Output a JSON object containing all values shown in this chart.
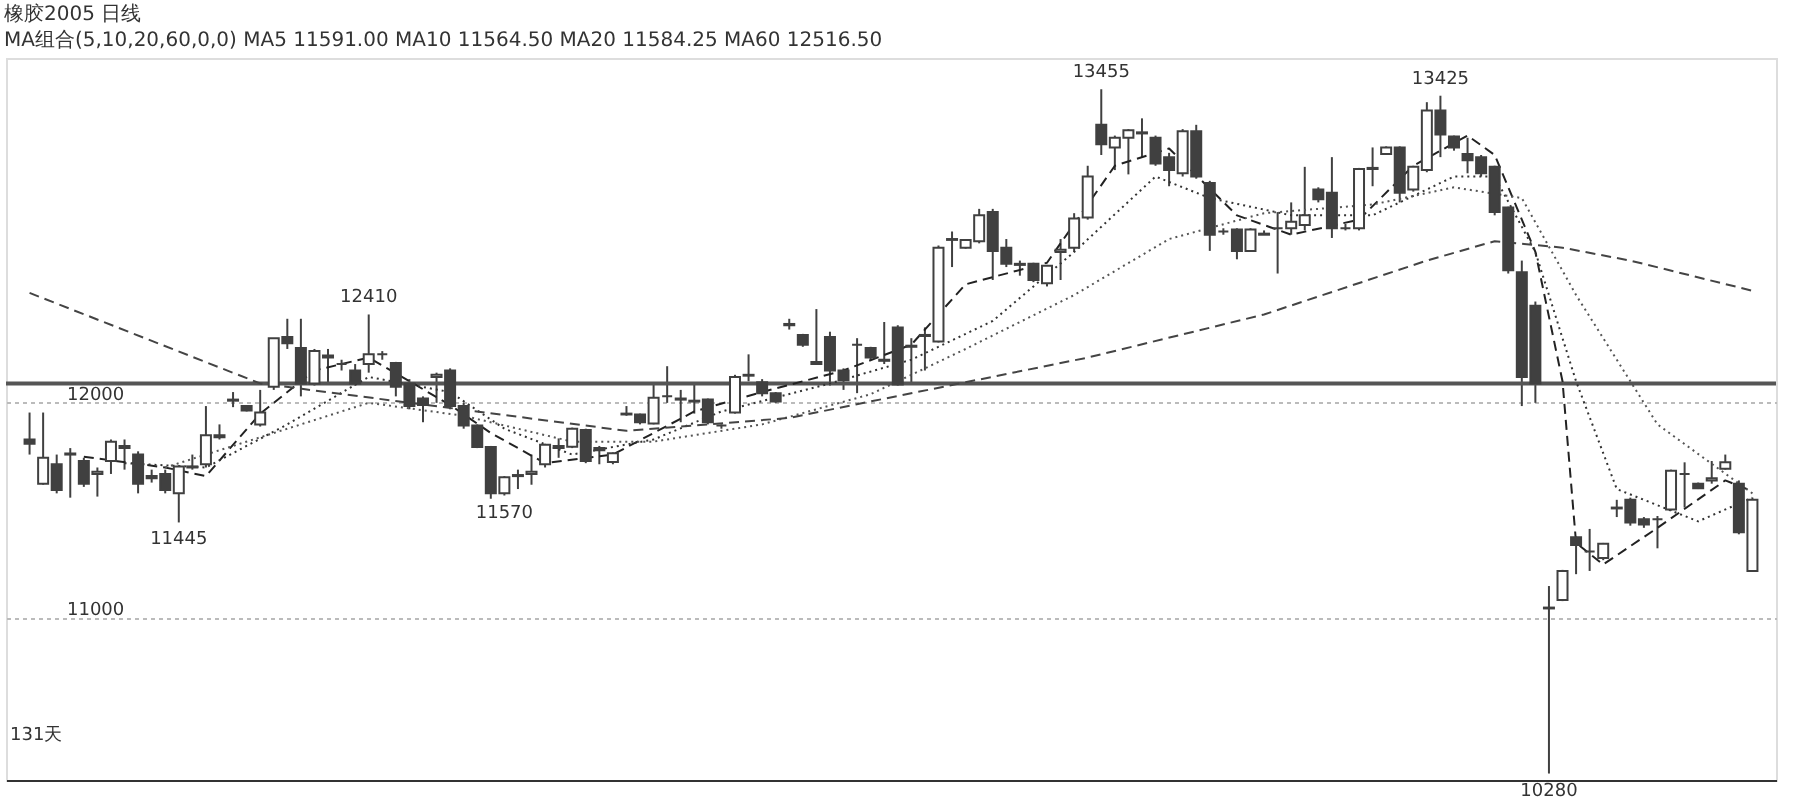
{
  "chart_data": {
    "type": "candlestick",
    "title": "橡胶2005 日线",
    "subtitle": "MA组合(5,10,20,60,0,0)  MA5 11591.00  MA10 11564.50  MA20 11584.25  MA60 12516.50",
    "color": "#404040",
    "categories": [
      null,
      null,
      null,
      null,
      null,
      null,
      null,
      null,
      null,
      null,
      null,
      null,
      null,
      null,
      null,
      null,
      null,
      null,
      null,
      null,
      null,
      null,
      null,
      null,
      null,
      null,
      null,
      null,
      null,
      null,
      null,
      null,
      null,
      null,
      null,
      null,
      null,
      null,
      null,
      null,
      null,
      null,
      null,
      null,
      null,
      null,
      null,
      null,
      null,
      null,
      null,
      null,
      null,
      null,
      null,
      null,
      null,
      null,
      null,
      null,
      null,
      null,
      null,
      null,
      null,
      null,
      null,
      null,
      null,
      null,
      null,
      null,
      null,
      null,
      null,
      null,
      null,
      null,
      null,
      null,
      null,
      null,
      null,
      null,
      null,
      null,
      null,
      null,
      null,
      null,
      null,
      null,
      null,
      null,
      null,
      null,
      null,
      null,
      null,
      null,
      null,
      null,
      null,
      null,
      null,
      null,
      null,
      null,
      null,
      null,
      null,
      null,
      null,
      null,
      null,
      null,
      null,
      null,
      null,
      null,
      null,
      null,
      null,
      null,
      null,
      null,
      null,
      null
    ],
    "ohlc": [
      [
        11830,
        11955,
        11760,
        11810
      ],
      [
        11625,
        11955,
        11620,
        11745
      ],
      [
        11715,
        11760,
        11580,
        11595
      ],
      [
        11760,
        11790,
        11560,
        11765
      ],
      [
        11730,
        11745,
        11610,
        11625
      ],
      [
        11670,
        11700,
        11565,
        11680
      ],
      [
        11730,
        11830,
        11670,
        11820
      ],
      [
        11800,
        11830,
        11690,
        11790
      ],
      [
        11760,
        11775,
        11580,
        11625
      ],
      [
        11660,
        11690,
        11630,
        11650
      ],
      [
        11670,
        11690,
        11580,
        11595
      ],
      [
        11580,
        11710,
        11445,
        11705
      ],
      [
        11700,
        11760,
        11690,
        11705
      ],
      [
        11715,
        11985,
        11700,
        11850
      ],
      [
        11840,
        11900,
        11830,
        11850
      ],
      [
        12010,
        12050,
        11980,
        12015
      ],
      [
        11985,
        11990,
        11960,
        11965
      ],
      [
        11900,
        12060,
        11890,
        11955
      ],
      [
        12075,
        12300,
        12060,
        12300
      ],
      [
        12306,
        12390,
        12250,
        12276
      ],
      [
        12255,
        12390,
        12030,
        12090
      ],
      [
        12090,
        12250,
        12080,
        12240
      ],
      [
        12210,
        12250,
        12090,
        12220
      ],
      [
        12180,
        12200,
        12150,
        12180
      ],
      [
        12150,
        12180,
        12080,
        12090
      ],
      [
        12180,
        12410,
        12140,
        12225
      ],
      [
        12225,
        12240,
        12200,
        12225
      ],
      [
        12185,
        12190,
        12030,
        12075
      ],
      [
        12090,
        12110,
        11970,
        11985
      ],
      [
        12020,
        12030,
        11910,
        11990
      ],
      [
        12120,
        12140,
        12000,
        12130
      ],
      [
        12150,
        12160,
        11970,
        11985
      ],
      [
        11985,
        12000,
        11880,
        11895
      ],
      [
        11895,
        11900,
        11790,
        11795
      ],
      [
        11795,
        11800,
        11555,
        11580
      ],
      [
        11580,
        11660,
        11570,
        11655
      ],
      [
        11660,
        11690,
        11600,
        11665
      ],
      [
        11670,
        11760,
        11620,
        11680
      ],
      [
        11715,
        11810,
        11700,
        11805
      ],
      [
        11790,
        11835,
        11745,
        11800
      ],
      [
        11796,
        11885,
        11790,
        11880
      ],
      [
        11874,
        11880,
        11720,
        11730
      ],
      [
        11790,
        11800,
        11715,
        11780
      ],
      [
        11725,
        11770,
        11715,
        11766
      ],
      [
        11946,
        11985,
        11940,
        11950
      ],
      [
        11946,
        11950,
        11900,
        11910
      ],
      [
        11904,
        12090,
        11900,
        12024
      ],
      [
        12030,
        12170,
        12000,
        12030
      ],
      [
        12015,
        12060,
        11910,
        12020
      ],
      [
        12006,
        12090,
        11950,
        12010
      ],
      [
        12015,
        12020,
        11900,
        11910
      ],
      [
        11895,
        11900,
        11880,
        11895
      ],
      [
        11955,
        12130,
        11950,
        12120
      ],
      [
        12126,
        12225,
        12100,
        12130
      ],
      [
        12096,
        12110,
        12030,
        12045
      ],
      [
        12045,
        12050,
        12000,
        12006
      ],
      [
        12360,
        12390,
        12340,
        12366
      ],
      [
        12315,
        12320,
        12260,
        12270
      ],
      [
        12180,
        12435,
        12180,
        12190
      ],
      [
        12306,
        12330,
        12080,
        12150
      ],
      [
        12150,
        12160,
        12060,
        12105
      ],
      [
        12270,
        12300,
        12045,
        12270
      ],
      [
        12255,
        12260,
        12200,
        12210
      ],
      [
        12195,
        12375,
        12180,
        12200
      ],
      [
        12350,
        12360,
        12080,
        12085
      ],
      [
        12260,
        12300,
        12085,
        12265
      ],
      [
        12310,
        12350,
        12150,
        12315
      ],
      [
        12285,
        12730,
        12280,
        12720
      ],
      [
        12756,
        12795,
        12630,
        12760
      ],
      [
        12720,
        12760,
        12715,
        12756
      ],
      [
        12750,
        12900,
        12740,
        12870
      ],
      [
        12885,
        12900,
        12570,
        12705
      ],
      [
        12720,
        12760,
        12630,
        12645
      ],
      [
        12640,
        12660,
        12590,
        12645
      ],
      [
        12645,
        12650,
        12560,
        12570
      ],
      [
        12555,
        12640,
        12540,
        12636
      ],
      [
        12700,
        12760,
        12570,
        12710
      ],
      [
        12720,
        12880,
        12700,
        12855
      ],
      [
        12860,
        13100,
        12850,
        13050
      ],
      [
        13290,
        13455,
        13150,
        13200
      ],
      [
        13185,
        13240,
        13080,
        13230
      ],
      [
        13230,
        13270,
        13060,
        13265
      ],
      [
        13255,
        13320,
        13140,
        13250
      ],
      [
        13230,
        13240,
        13100,
        13110
      ],
      [
        13140,
        13160,
        13005,
        13080
      ],
      [
        13065,
        13270,
        13050,
        13260
      ],
      [
        13260,
        13290,
        13040,
        13050
      ],
      [
        13020,
        13030,
        12705,
        12780
      ],
      [
        12795,
        12810,
        12780,
        12795
      ],
      [
        12804,
        12810,
        12666,
        12705
      ],
      [
        12705,
        12810,
        12700,
        12804
      ],
      [
        12780,
        12800,
        12780,
        12785
      ],
      [
        12810,
        12885,
        12600,
        12810
      ],
      [
        12810,
        12930,
        12780,
        12840
      ],
      [
        12825,
        13095,
        12800,
        12870
      ],
      [
        12990,
        13000,
        12930,
        12945
      ],
      [
        12975,
        13140,
        12765,
        12810
      ],
      [
        12810,
        12830,
        12800,
        12810
      ],
      [
        12810,
        13090,
        12800,
        13085
      ],
      [
        13085,
        13185,
        13005,
        13090
      ],
      [
        13155,
        13190,
        13150,
        13185
      ],
      [
        13185,
        13190,
        12930,
        12975
      ],
      [
        12990,
        13100,
        12980,
        13095
      ],
      [
        13080,
        13395,
        13070,
        13356
      ],
      [
        13356,
        13425,
        13140,
        13245
      ],
      [
        13236,
        13240,
        13170,
        13185
      ],
      [
        13155,
        13230,
        13065,
        13125
      ],
      [
        13140,
        13150,
        13050,
        13065
      ],
      [
        13095,
        13100,
        12870,
        12885
      ],
      [
        12906,
        12910,
        12600,
        12615
      ],
      [
        12606,
        12660,
        11985,
        12120
      ],
      [
        12450,
        12470,
        12000,
        12090
      ],
      [
        11046,
        11150,
        10280,
        11050
      ],
      [
        11085,
        11225,
        11080,
        11220
      ],
      [
        11376,
        11380,
        11205,
        11340
      ],
      [
        11310,
        11415,
        11220,
        11310
      ],
      [
        11280,
        11350,
        11270,
        11346
      ],
      [
        11510,
        11550,
        11470,
        11514
      ],
      [
        11550,
        11560,
        11430,
        11445
      ],
      [
        11460,
        11470,
        11420,
        11436
      ],
      [
        11460,
        11475,
        11325,
        11460
      ],
      [
        11505,
        11690,
        11500,
        11685
      ],
      [
        11670,
        11724,
        11514,
        11670
      ],
      [
        11625,
        11630,
        11600,
        11604
      ],
      [
        11640,
        11730,
        11625,
        11650
      ],
      [
        11694,
        11760,
        11690,
        11724
      ],
      [
        11625,
        11640,
        11390,
        11400
      ],
      [
        11220,
        11560,
        11220,
        11550
      ]
    ],
    "series": [
      {
        "type": "line",
        "color": "#222222",
        "line_style": "dashed",
        "values": [
          null,
          null,
          null,
          null,
          11750,
          null,
          null,
          null,
          null,
          null,
          11700,
          null,
          null,
          11660,
          null,
          null,
          null,
          11950,
          null,
          null,
          null,
          12150,
          null,
          null,
          null,
          12210,
          null,
          null,
          null,
          null,
          null,
          11990,
          null,
          null,
          11860,
          null,
          null,
          null,
          11720,
          null,
          null,
          null,
          null,
          11760,
          null,
          null,
          null,
          null,
          null,
          11960,
          null,
          null,
          null,
          null,
          12050,
          null,
          null,
          null,
          null,
          null,
          12150,
          null,
          null,
          null,
          null,
          12270,
          null,
          null,
          null,
          12550,
          null,
          null,
          null,
          null,
          null,
          12650,
          null,
          null,
          null,
          null,
          13100,
          null,
          null,
          null,
          13180,
          null,
          null,
          null,
          null,
          12870,
          null,
          null,
          null,
          12780,
          null,
          null,
          null,
          null,
          12850,
          null,
          null,
          null,
          13100,
          null,
          null,
          null,
          13240,
          null,
          13150,
          null,
          null,
          12700,
          null,
          12100,
          11350,
          null,
          11250,
          null,
          null,
          null,
          11420,
          null,
          null,
          null,
          null,
          11640,
          null,
          11590
        ]
      },
      {
        "type": "line",
        "color": "#333333",
        "line_style": "dotted",
        "values": [
          null,
          null,
          null,
          null,
          null,
          null,
          null,
          11720,
          null,
          null,
          null,
          null,
          null,
          11700,
          null,
          null,
          null,
          null,
          null,
          11900,
          null,
          null,
          null,
          null,
          null,
          12120,
          null,
          null,
          null,
          null,
          null,
          12050,
          null,
          null,
          null,
          11880,
          null,
          null,
          null,
          null,
          11760,
          null,
          null,
          null,
          null,
          null,
          11830,
          null,
          null,
          null,
          null,
          11960,
          null,
          null,
          null,
          null,
          null,
          null,
          null,
          12090,
          null,
          null,
          null,
          null,
          null,
          12200,
          null,
          null,
          null,
          null,
          null,
          12380,
          null,
          null,
          null,
          null,
          null,
          12700,
          null,
          null,
          null,
          null,
          null,
          13050,
          null,
          null,
          null,
          12950,
          null,
          null,
          null,
          null,
          null,
          12870,
          null,
          null,
          null,
          null,
          null,
          12870,
          null,
          null,
          null,
          null,
          null,
          13050,
          null,
          null,
          13050,
          null,
          null,
          12700,
          null,
          null,
          12100,
          null,
          null,
          11600,
          null,
          null,
          null,
          null,
          null,
          11450,
          null,
          null,
          null,
          11560
        ]
      },
      {
        "type": "line",
        "color": "#555555",
        "line_style": "dotted",
        "values": [
          null,
          null,
          null,
          null,
          null,
          null,
          null,
          null,
          null,
          null,
          11700,
          null,
          null,
          null,
          null,
          null,
          null,
          11840,
          null,
          null,
          null,
          null,
          null,
          null,
          null,
          12000,
          null,
          null,
          null,
          null,
          null,
          null,
          11940,
          null,
          null,
          null,
          null,
          null,
          null,
          null,
          11820,
          null,
          null,
          null,
          null,
          null,
          11820,
          null,
          null,
          null,
          null,
          null,
          null,
          null,
          11900,
          null,
          null,
          null,
          null,
          null,
          null,
          null,
          12040,
          null,
          null,
          null,
          null,
          null,
          null,
          12250,
          null,
          null,
          null,
          null,
          null,
          null,
          null,
          12500,
          null,
          null,
          null,
          null,
          null,
          null,
          12760,
          null,
          null,
          null,
          null,
          null,
          null,
          12880,
          null,
          null,
          null,
          null,
          null,
          null,
          null,
          12920,
          null,
          null,
          null,
          null,
          null,
          13000,
          null,
          null,
          null,
          null,
          12950,
          null,
          null,
          null,
          12500,
          null,
          null,
          null,
          null,
          null,
          11900,
          null,
          null,
          null,
          null,
          null,
          null,
          11580
        ]
      },
      {
        "type": "line",
        "color": "#444444",
        "line_style": "dashed",
        "values": [
          12510,
          null,
          null,
          null,
          null,
          null,
          null,
          null,
          null,
          null,
          null,
          null,
          null,
          null,
          null,
          null,
          null,
          12090,
          null,
          null,
          null,
          null,
          null,
          null,
          null,
          null,
          null,
          null,
          null,
          null,
          null,
          null,
          null,
          null,
          null,
          null,
          null,
          null,
          null,
          null,
          null,
          null,
          null,
          null,
          11870,
          null,
          null,
          null,
          null,
          null,
          null,
          null,
          null,
          null,
          null,
          null,
          11930,
          null,
          null,
          null,
          null,
          null,
          null,
          null,
          null,
          null,
          null,
          null,
          null,
          null,
          null,
          null,
          null,
          null,
          null,
          null,
          null,
          null,
          12210,
          null,
          null,
          null,
          null,
          null,
          null,
          null,
          null,
          null,
          null,
          null,
          null,
          12410,
          null,
          null,
          null,
          null,
          null,
          null,
          null,
          null,
          null,
          null,
          null,
          12660,
          null,
          null,
          null,
          null,
          12750,
          null,
          null,
          null,
          null,
          12720,
          null,
          null,
          null,
          null,
          12660,
          null,
          null,
          null,
          null,
          null,
          null,
          null,
          null,
          12520
        ]
      }
    ],
    "ylim": [
      10250,
      13600
    ],
    "yticks": [
      11000,
      12000
    ],
    "grid": "y",
    "tick_labels": "y",
    "ref_lines": [
      {
        "axis": "y",
        "value": 12090,
        "color": "#555555"
      }
    ],
    "annotations": [
      {
        "text": "13455",
        "y": 13455
      },
      {
        "text": "13425",
        "y": 13425
      },
      {
        "text": "12410",
        "y": 12410
      },
      {
        "text": "11445",
        "y": 11445
      },
      {
        "text": "11570",
        "y": 11570
      },
      {
        "text": "10280",
        "y": 10280
      },
      "131天"
    ]
  }
}
